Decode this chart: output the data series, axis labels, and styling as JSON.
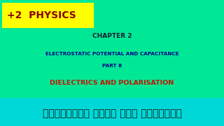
{
  "bg_color": "#00E896",
  "bottom_bar_color": "#00D8D8",
  "yellow_box_color": "#FFFF00",
  "yellow_box_text": "+2  PHYSICS",
  "yellow_box_text_color": "#8B0000",
  "chapter_text": "CHAPTER 2",
  "chapter_color": "#1a1a2e",
  "subtitle_line1": "ELECTROSTATIC POTENTIAL AND CAPACITANCE",
  "subtitle_line2": "PART 8",
  "subtitle_color": "#00008B",
  "highlight_text": "DIELECTRICS AND POLARISATION",
  "highlight_color": "#CC1100",
  "malayalam_text": "ഫിസിക്സ് പഠനം ഇനി എളുപ്പം",
  "malayalam_color": "#1a1a1a",
  "fig_width": 3.2,
  "fig_height": 1.8,
  "dpi": 100
}
